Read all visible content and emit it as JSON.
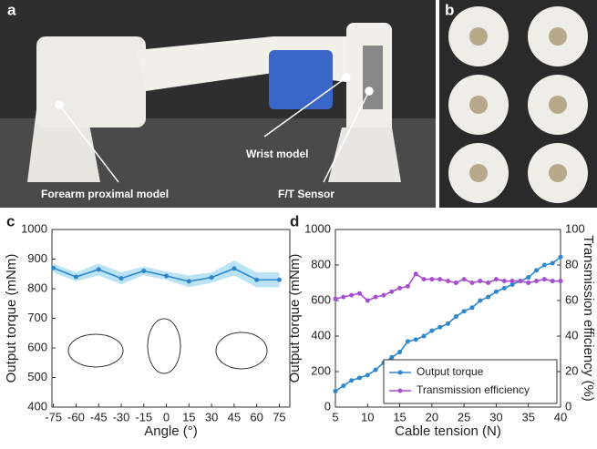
{
  "photos": {
    "a": {
      "panel": "a",
      "labels": [
        "Wrist model",
        "Forearm proximal model",
        "F/T Sensor"
      ]
    },
    "b": {
      "panel": "b"
    }
  },
  "chart_data": [
    {
      "type": "line",
      "panel": "c",
      "x_label": "Angle (°)",
      "y_label": "Output torque (mNm)",
      "x": [
        -75,
        -60,
        -45,
        -30,
        -15,
        0,
        15,
        30,
        45,
        60,
        75
      ],
      "xlim": [
        -76,
        82
      ],
      "xticks": [
        -75,
        -60,
        -45,
        -30,
        -15,
        0,
        15,
        30,
        45,
        60,
        75
      ],
      "ylim": [
        400,
        1000
      ],
      "yticks": [
        400,
        500,
        600,
        700,
        800,
        900,
        1000
      ],
      "series": [
        {
          "color": "#2e86cc",
          "band_color": "#a9dcf3",
          "values": [
            870,
            840,
            865,
            835,
            860,
            843,
            825,
            838,
            868,
            830,
            830
          ],
          "lower": [
            855,
            825,
            845,
            815,
            845,
            830,
            805,
            820,
            845,
            805,
            805
          ],
          "upper": [
            885,
            855,
            885,
            855,
            875,
            858,
            845,
            855,
            895,
            855,
            855
          ]
        }
      ]
    },
    {
      "type": "line",
      "panel": "d",
      "x_label": "Cable tension (N)",
      "y_label": "Output torque (mNm)",
      "y2_label": "Transmission efficiency (%)",
      "x": [
        5,
        6.25,
        7.5,
        8.75,
        10,
        11.25,
        12.5,
        13.75,
        15,
        16.25,
        17.5,
        18.75,
        20,
        21.25,
        22.5,
        23.75,
        25,
        26.25,
        27.5,
        28.75,
        30,
        31.25,
        32.5,
        33.75,
        35,
        36.25,
        37.5,
        38.75,
        40
      ],
      "xlim": [
        5,
        40
      ],
      "xticks": [
        5,
        10,
        15,
        20,
        25,
        30,
        35,
        40
      ],
      "ylim": [
        0,
        1000
      ],
      "yticks": [
        0,
        200,
        400,
        600,
        800,
        1000
      ],
      "y2lim": [
        0,
        100
      ],
      "y2ticks": [
        0,
        20,
        40,
        60,
        80,
        100
      ],
      "legend": "lower right",
      "series": [
        {
          "name": "Output torque",
          "color": "#2e86cc",
          "values": [
            90,
            120,
            150,
            165,
            180,
            210,
            250,
            280,
            310,
            370,
            380,
            400,
            430,
            450,
            470,
            510,
            540,
            560,
            600,
            620,
            650,
            670,
            690,
            710,
            730,
            770,
            800,
            810,
            845
          ]
        },
        {
          "name": "Transmission efficiency",
          "color": "#a64fd0",
          "axis": "y2",
          "values": [
            61,
            62,
            63,
            64,
            60,
            62,
            63,
            65,
            67,
            68,
            75,
            72,
            72,
            72,
            71,
            70,
            72,
            70,
            71,
            70,
            72,
            71,
            71,
            71,
            70,
            71,
            72,
            71,
            71
          ]
        }
      ]
    }
  ]
}
